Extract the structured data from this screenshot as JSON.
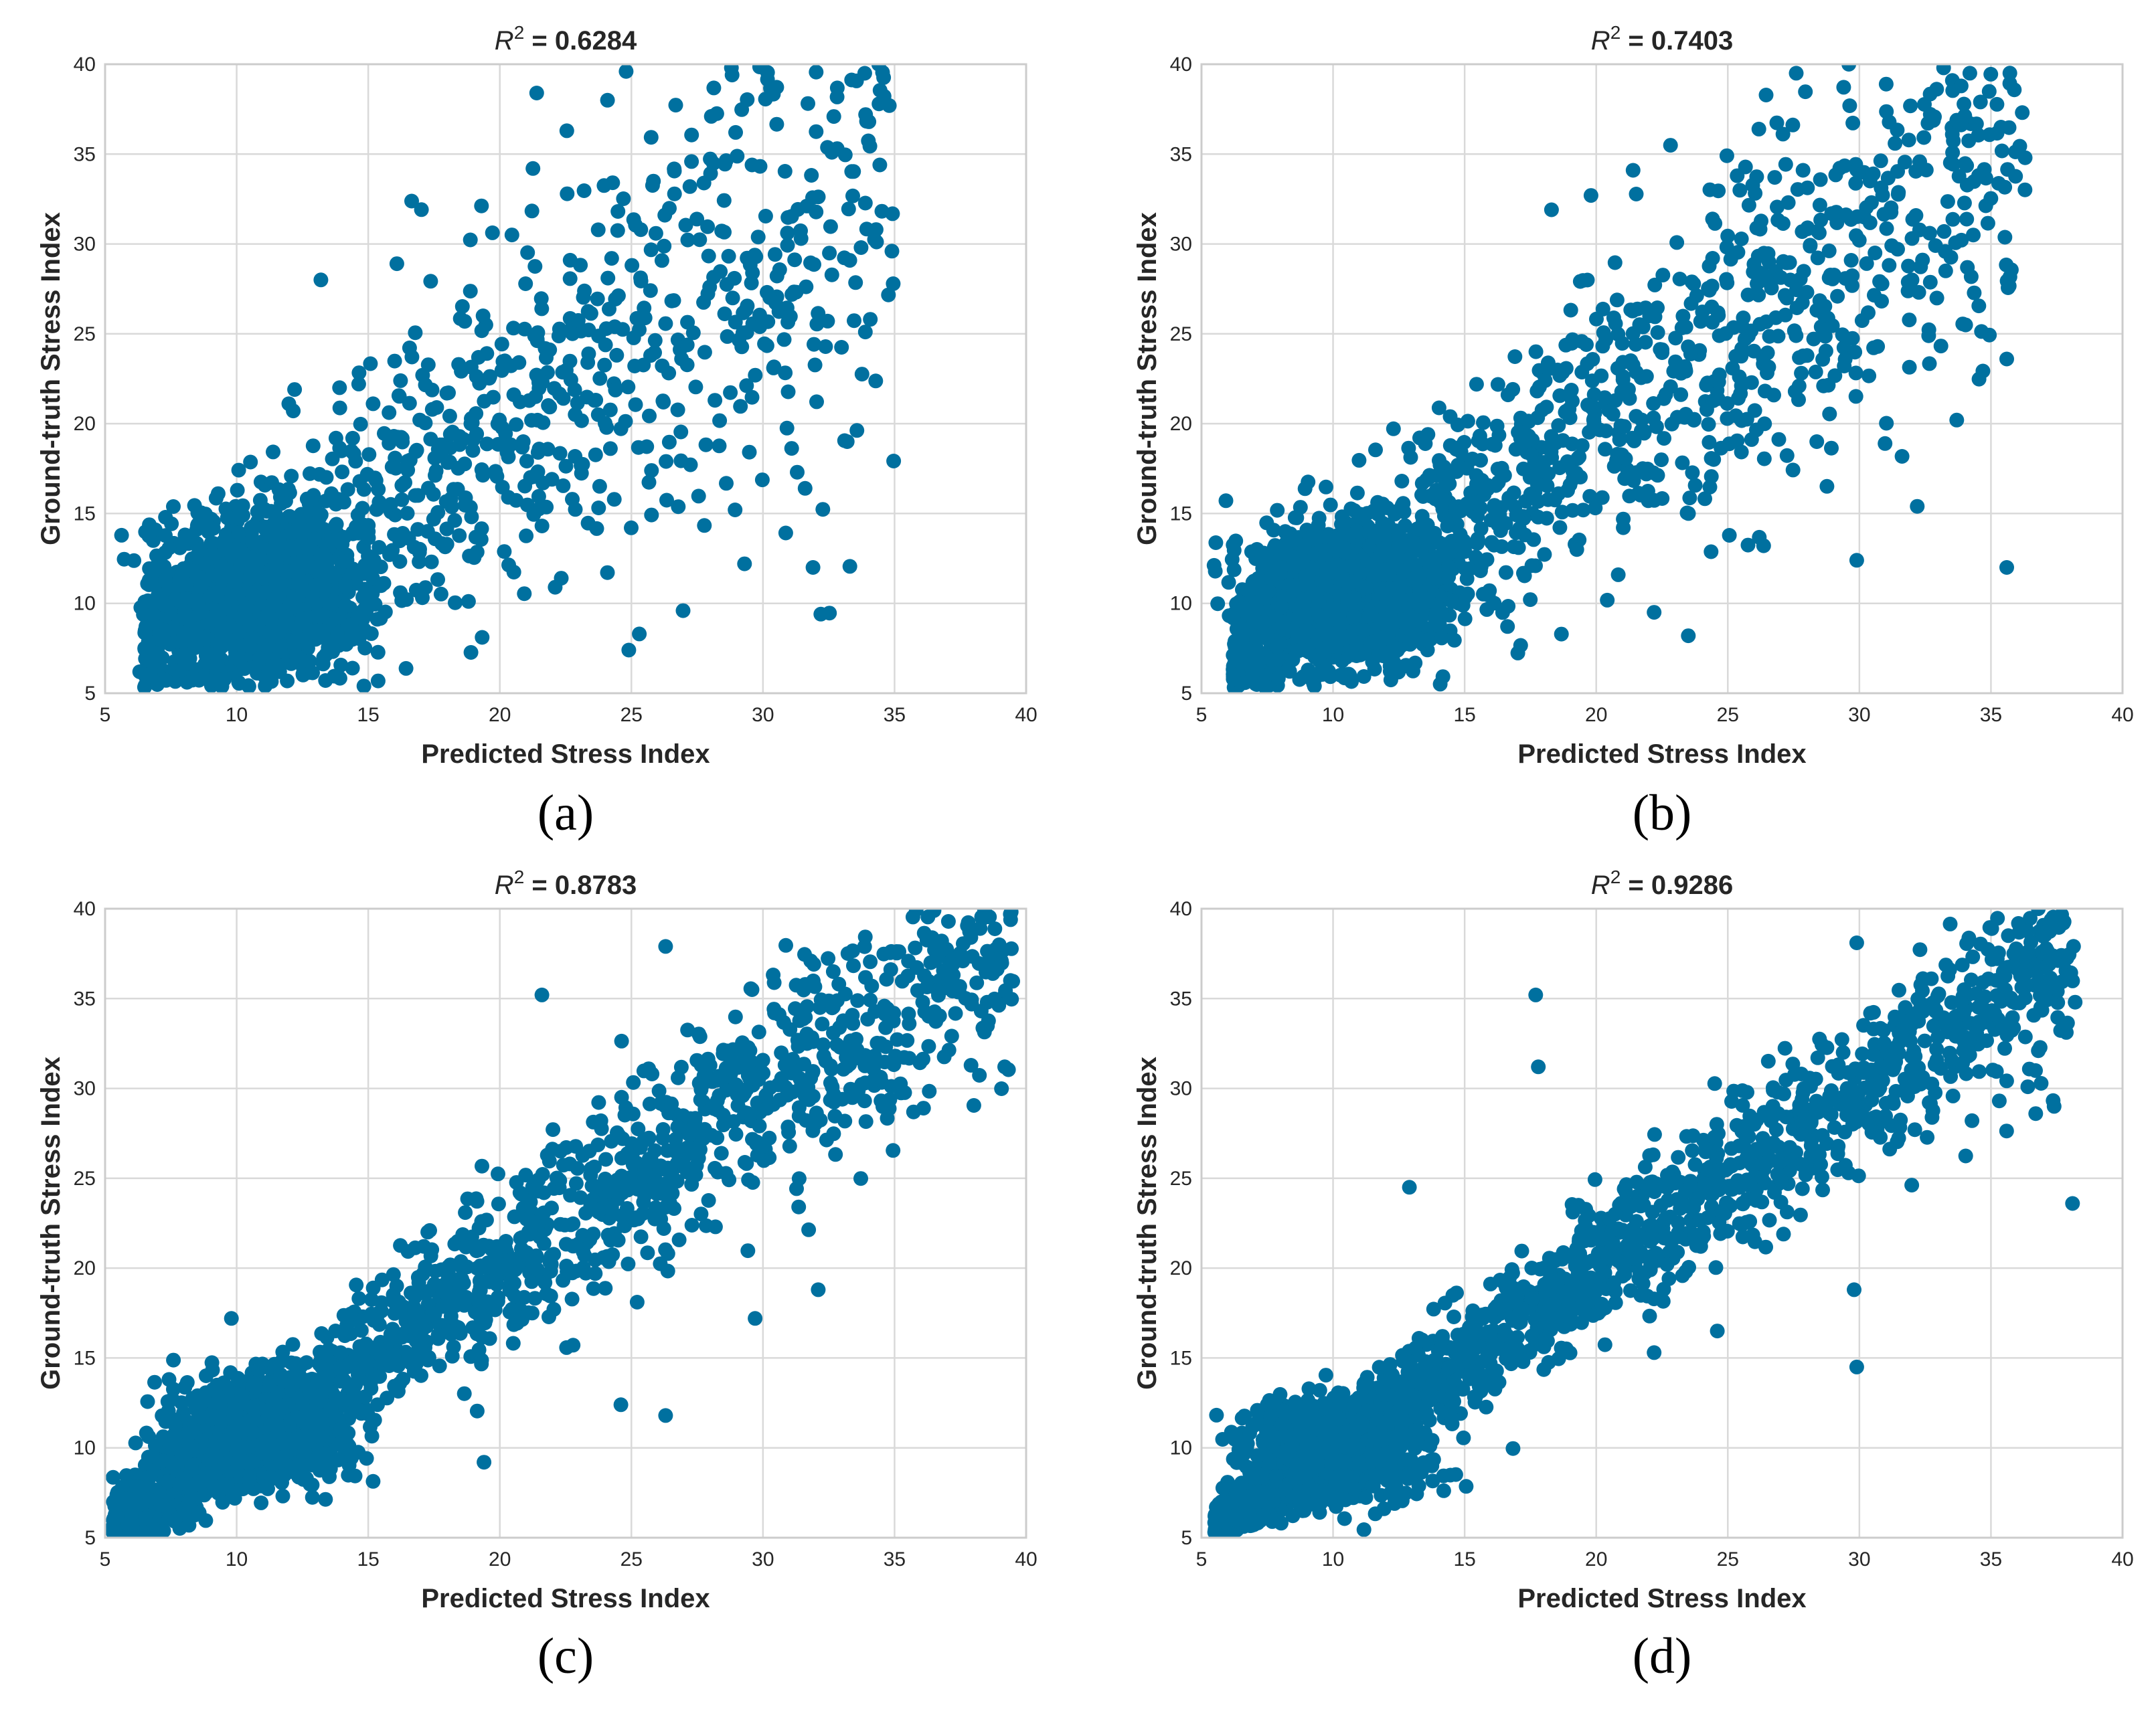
{
  "figure": {
    "marker_color": "#00709f",
    "grid_color": "#d9d9d9",
    "frame_color": "#cccccc"
  },
  "chart_data": [
    {
      "type": "scatter",
      "panel_label": "(a)",
      "title_prefix": "R",
      "title_superscript": "2",
      "title_value": " = 0.6284",
      "xlabel": "Predicted Stress Index",
      "ylabel": "Ground-truth Stress Index",
      "xlim": [
        5,
        40
      ],
      "ylim": [
        5,
        40
      ],
      "xticks": [
        "5",
        "10",
        "15",
        "20",
        "25",
        "30",
        "35",
        "40"
      ],
      "yticks": [
        "5",
        "10",
        "15",
        "20",
        "25",
        "30",
        "35",
        "40"
      ],
      "grid": true,
      "r2": 0.6284,
      "n_points": 2400,
      "cluster": {
        "center_x": 11,
        "center_y": 10.5,
        "share": 0.55
      },
      "x_range_data": [
        6.5,
        35
      ],
      "outliers": [
        [
          13.2,
          28
        ],
        [
          12.2,
          21.9
        ],
        [
          21.4,
          38.4
        ],
        [
          24.9,
          7.4
        ],
        [
          32.2,
          9.4
        ],
        [
          31.9,
          12
        ],
        [
          33.2,
          19
        ],
        [
          25.3,
          8.3
        ],
        [
          34.9,
          29.6
        ],
        [
          34.3,
          30.8
        ],
        [
          29.3,
          12.2
        ],
        [
          24.8,
          39.6
        ],
        [
          28.8,
          39.8
        ],
        [
          34.8,
          37.7
        ],
        [
          34.4,
          40
        ],
        [
          33.9,
          37.2
        ],
        [
          31.6,
          16.4
        ],
        [
          31.3,
          17.3
        ]
      ]
    },
    {
      "type": "scatter",
      "panel_label": "(b)",
      "title_prefix": "R",
      "title_superscript": "2",
      "title_value": " = 0.7403",
      "xlabel": "Predicted Stress Index",
      "ylabel": "Ground-truth Stress Index",
      "xlim": [
        5,
        40
      ],
      "ylim": [
        5,
        40
      ],
      "xticks": [
        "5",
        "10",
        "15",
        "20",
        "25",
        "30",
        "35",
        "40"
      ],
      "yticks": [
        "5",
        "10",
        "15",
        "20",
        "25",
        "30",
        "35",
        "40"
      ],
      "grid": true,
      "r2": 0.7403,
      "n_points": 2400,
      "cluster": {
        "center_x": 10.5,
        "center_y": 10.5,
        "share": 0.45
      },
      "x_range_data": [
        6.2,
        36.3
      ],
      "outliers": [
        [
          35.6,
          12
        ],
        [
          33.7,
          20.2
        ],
        [
          32.2,
          15.4
        ],
        [
          29.9,
          12.4
        ],
        [
          23.5,
          8.2
        ],
        [
          22.2,
          9.5
        ],
        [
          36.3,
          34.8
        ],
        [
          35.6,
          23.6
        ],
        [
          27.6,
          39.5
        ],
        [
          29.6,
          40
        ],
        [
          33.2,
          39.8
        ],
        [
          34.6,
          37.9
        ],
        [
          19.8,
          32.7
        ],
        [
          21.4,
          34.1
        ],
        [
          18.3,
          31.9
        ]
      ]
    },
    {
      "type": "scatter",
      "panel_label": "(c)",
      "title_prefix": "R",
      "title_superscript": "2",
      "title_value": " = 0.8783",
      "xlabel": "Predicted Stress Index",
      "ylabel": "Ground-truth Stress Index",
      "xlim": [
        5,
        40
      ],
      "ylim": [
        5,
        40
      ],
      "xticks": [
        "5",
        "10",
        "15",
        "20",
        "25",
        "30",
        "35",
        "40"
      ],
      "yticks": [
        "5",
        "10",
        "15",
        "20",
        "25",
        "30",
        "35",
        "40"
      ],
      "grid": true,
      "r2": 0.8783,
      "n_points": 2400,
      "cluster": {
        "center_x": 11,
        "center_y": 11,
        "share": 0.3
      },
      "x_range_data": [
        5.3,
        39.5
      ],
      "outliers": [
        [
          5.3,
          5.3
        ],
        [
          39.4,
          39.7
        ],
        [
          26.3,
          11.8
        ],
        [
          19.4,
          9.2
        ],
        [
          29.7,
          17.2
        ],
        [
          26.3,
          37.9
        ],
        [
          21.6,
          35.2
        ],
        [
          36.1,
          28.9
        ],
        [
          32.1,
          18.8
        ],
        [
          24.6,
          12.4
        ],
        [
          9.8,
          17.2
        ],
        [
          37.9,
          38.4
        ],
        [
          36.5,
          39.9
        ]
      ]
    },
    {
      "type": "scatter",
      "panel_label": "(d)",
      "title_prefix": "R",
      "title_superscript": "2",
      "title_value": " = 0.9286",
      "xlabel": "Predicted Stress Index",
      "ylabel": "Ground-truth Stress Index",
      "xlim": [
        5,
        40
      ],
      "ylim": [
        5,
        40
      ],
      "xticks": [
        "5",
        "10",
        "15",
        "20",
        "25",
        "30",
        "35",
        "40"
      ],
      "yticks": [
        "5",
        "10",
        "15",
        "20",
        "25",
        "30",
        "35",
        "40"
      ],
      "grid": true,
      "r2": 0.9286,
      "n_points": 2400,
      "cluster": {
        "center_x": 10,
        "center_y": 10,
        "share": 0.25
      },
      "x_range_data": [
        5.5,
        38.2
      ],
      "outliers": [
        [
          17.7,
          35.2
        ],
        [
          17.8,
          31.2
        ],
        [
          12.9,
          24.5
        ],
        [
          29.9,
          14.5
        ],
        [
          29.8,
          18.8
        ],
        [
          38.1,
          23.6
        ],
        [
          36.7,
          28.6
        ],
        [
          37.4,
          29
        ],
        [
          29.9,
          38.1
        ],
        [
          38.2,
          34.8
        ],
        [
          36.8,
          40
        ],
        [
          36.8,
          32.1
        ],
        [
          22.2,
          15.3
        ],
        [
          24.6,
          16.5
        ],
        [
          5.5,
          5.3
        ]
      ]
    }
  ]
}
